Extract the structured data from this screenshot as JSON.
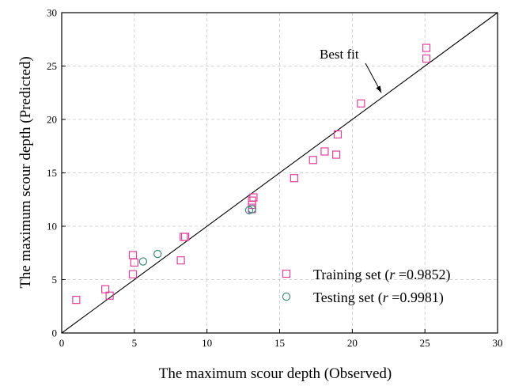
{
  "chart_data": {
    "type": "scatter",
    "xlabel": "The maximum scour depth (Observed)",
    "ylabel": "The maximum scour depth (Predicted)",
    "xlim": [
      0,
      30
    ],
    "ylim": [
      0,
      30
    ],
    "xticks": [
      "0",
      "5",
      "10",
      "15",
      "20",
      "25",
      "30"
    ],
    "yticks": [
      "0",
      "5",
      "10",
      "15",
      "20",
      "25",
      "30"
    ],
    "grid": true,
    "legend_position": "bottom-right",
    "reference_line": {
      "x": [
        0,
        30
      ],
      "y": [
        0,
        30
      ]
    },
    "annotation": {
      "text": "Best fit",
      "points_to": [
        22,
        22.5
      ]
    },
    "series": [
      {
        "name_prefix": "Training set (",
        "name_var": "r",
        "name_suffix": " =0.9852)",
        "marker": "square",
        "color": "#e0409a",
        "x": [
          1.0,
          3.0,
          3.3,
          4.9,
          4.9,
          5.0,
          8.2,
          8.4,
          8.5,
          13.1,
          13.1,
          13.1,
          13.2,
          16.0,
          17.3,
          18.1,
          18.9,
          19.0,
          20.6,
          25.1,
          25.1
        ],
        "y": [
          3.1,
          4.1,
          3.5,
          7.3,
          5.5,
          6.6,
          6.8,
          9.0,
          9.0,
          11.6,
          12.0,
          12.4,
          12.7,
          14.5,
          16.2,
          17.0,
          16.7,
          18.6,
          21.5,
          25.7,
          26.7
        ]
      },
      {
        "name_prefix": "Testing set (",
        "name_var": "r",
        "name_suffix": " =0.9981)",
        "marker": "circle",
        "color": "#3a8a7a",
        "x": [
          5.6,
          6.6,
          12.9,
          13.1
        ],
        "y": [
          6.7,
          7.4,
          11.5,
          11.6
        ]
      }
    ]
  }
}
